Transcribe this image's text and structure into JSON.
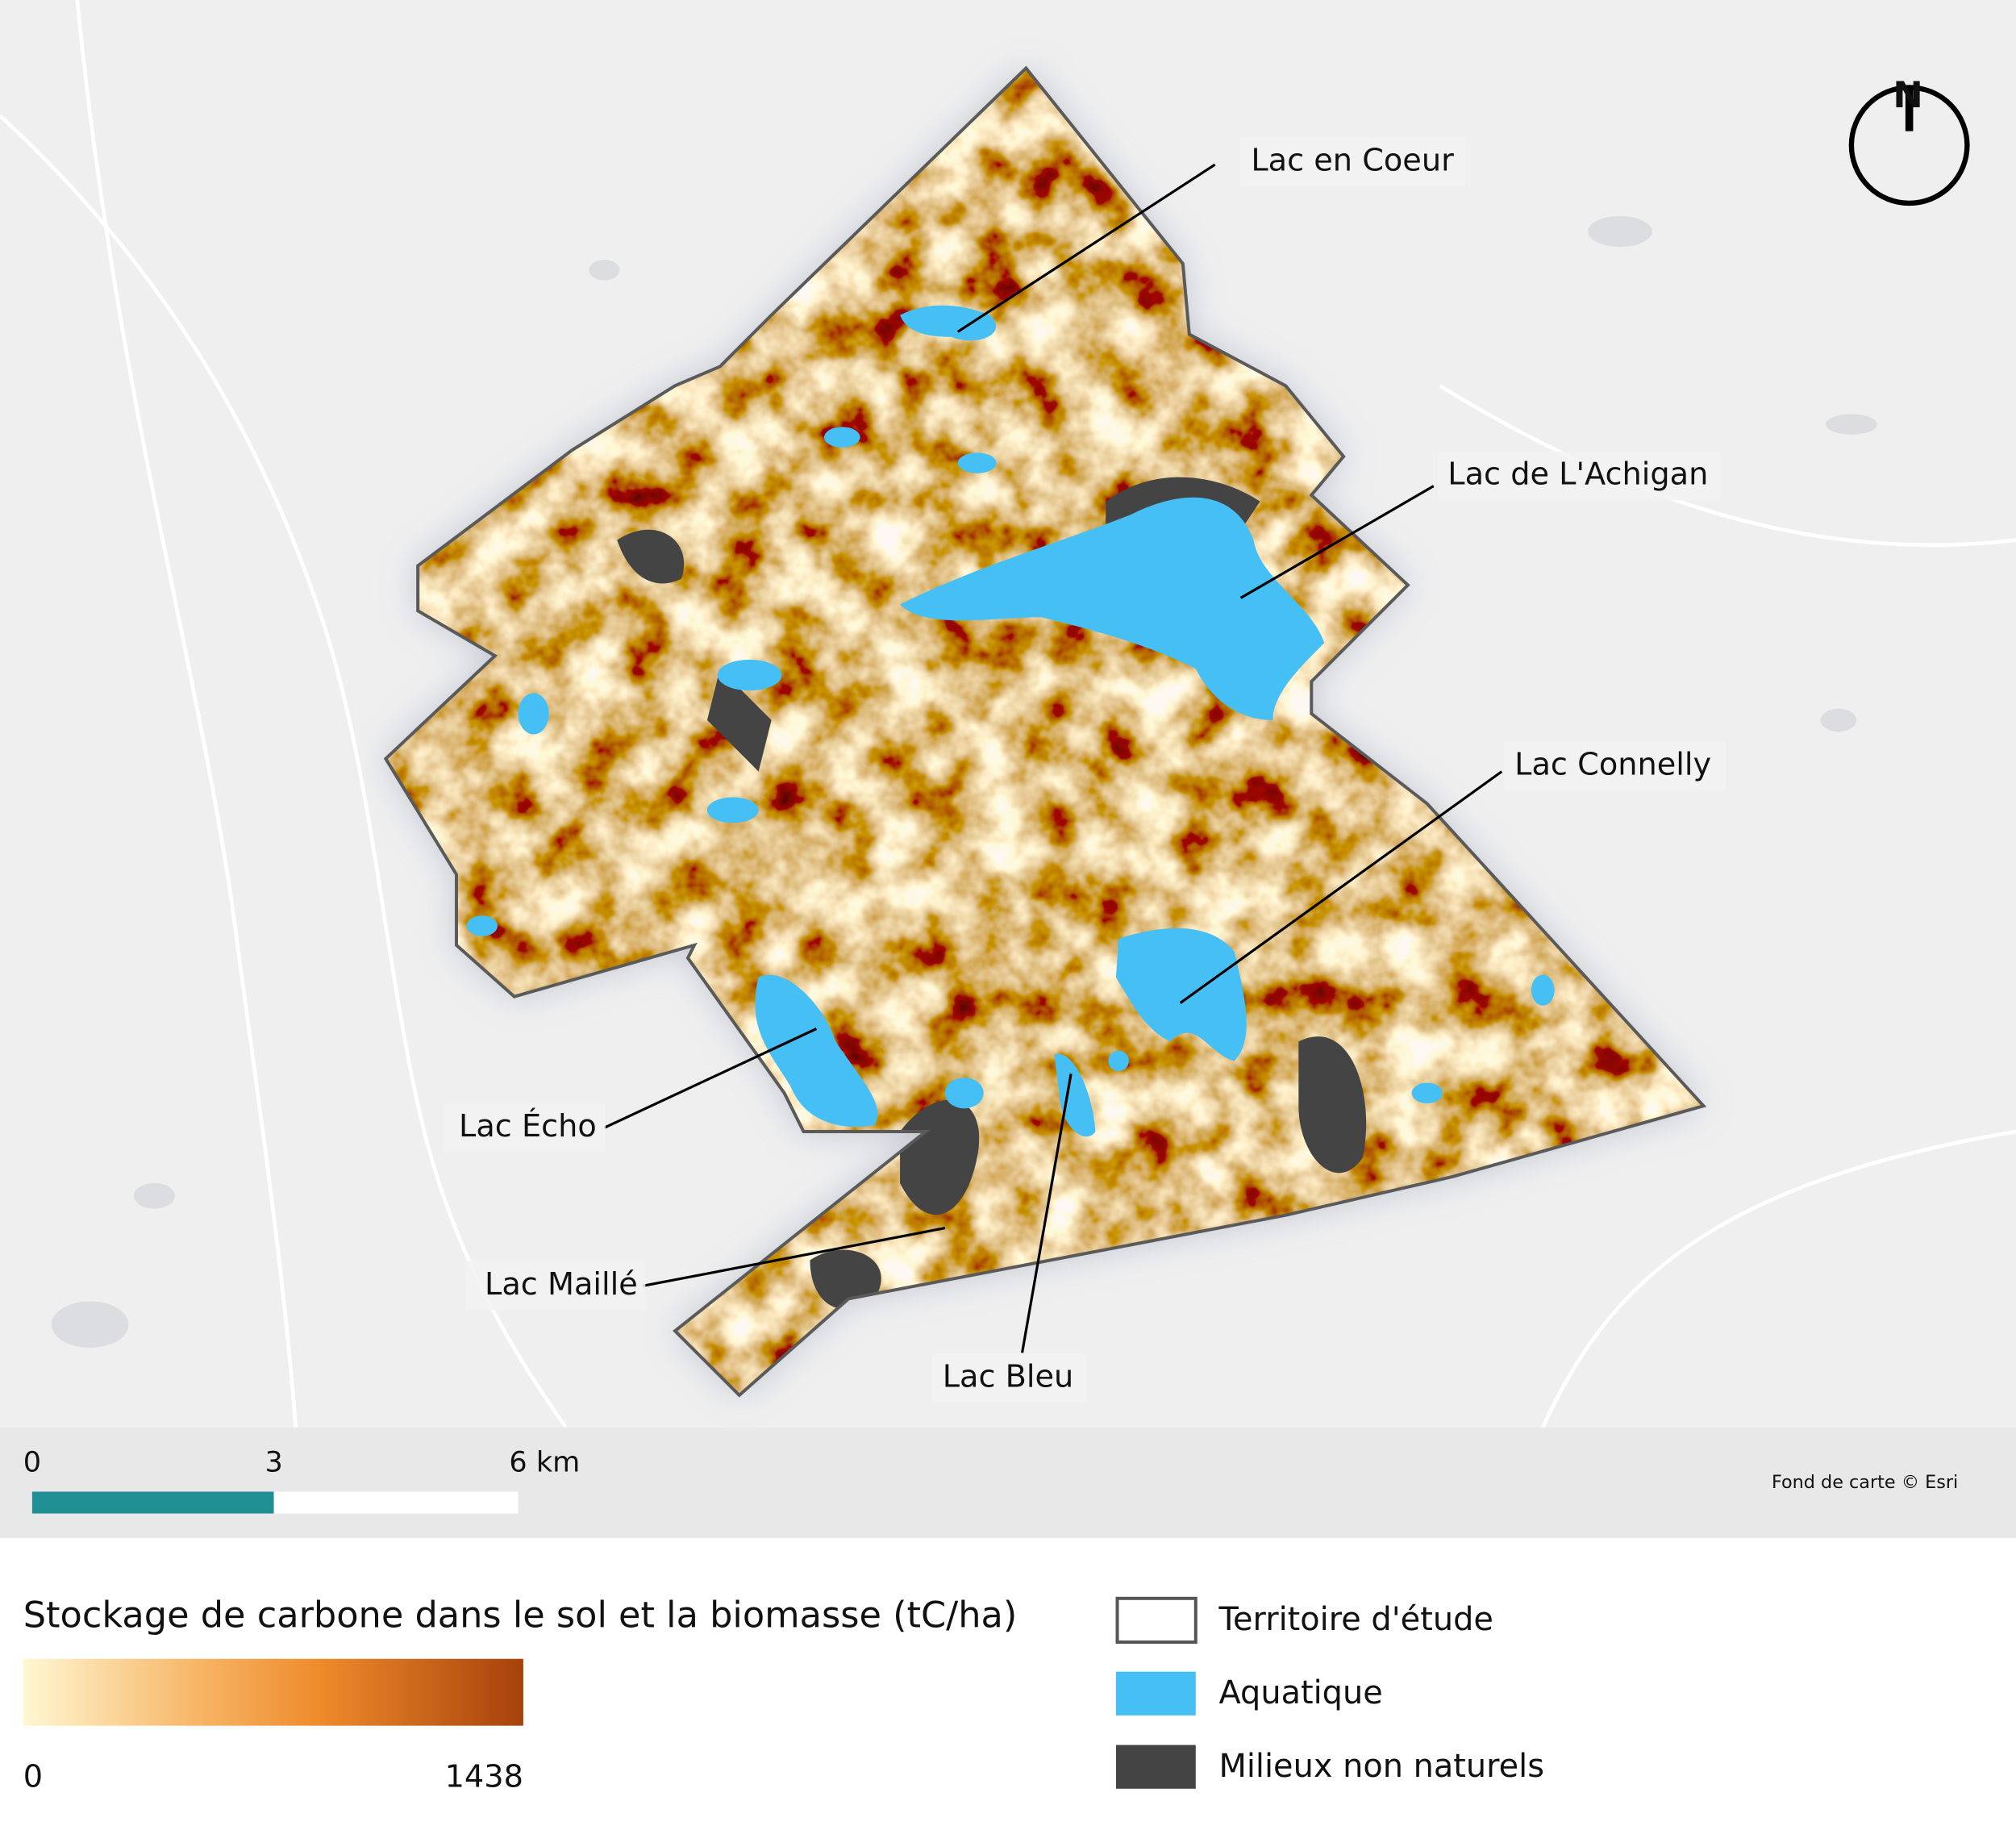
{
  "map": {
    "north": "N",
    "lakes": [
      "Lac en Coeur",
      "Lac de L'Achigan",
      "Lac Connelly",
      "Lac Écho",
      "Lac Maillé",
      "Lac Bleu"
    ]
  },
  "scale_bar": {
    "labels": [
      "0",
      "3",
      "6 km"
    ]
  },
  "attribution": "Fond de carte © Esri",
  "legend": {
    "title": "Stockage de carbone dans le sol et la biomasse (tC/ha)",
    "gradient": {
      "min": "0",
      "max": "1438"
    },
    "items": [
      "Territoire d'étude",
      "Aquatique",
      "Milieux non naturels"
    ]
  }
}
